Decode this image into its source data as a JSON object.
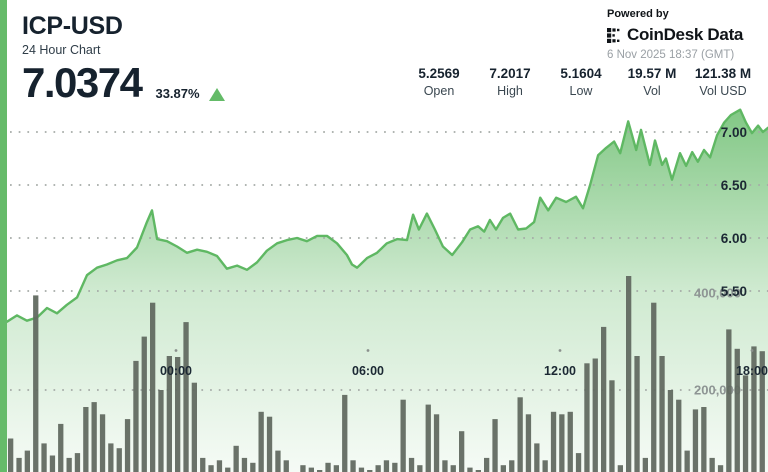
{
  "header": {
    "symbol": "ICP-USD",
    "subtitle": "24 Hour Chart",
    "price": "7.0374",
    "change_pct": "33.87%",
    "stats": [
      {
        "value": "5.2569",
        "label": "Open"
      },
      {
        "value": "7.2017",
        "label": "High"
      },
      {
        "value": "5.1604",
        "label": "Low"
      },
      {
        "value": "19.57 M",
        "label": "Vol"
      },
      {
        "value": "121.38 M",
        "label": "Vol USD"
      }
    ],
    "powered_by": "Powered by",
    "brand": "CoinDesk Data",
    "timestamp": "6 Nov 2025 18:37 (GMT)"
  },
  "colors": {
    "accent_strip": "#66bb6a",
    "line": "#5fb863",
    "up_triangle": "#64bb68",
    "bars": "#626a61",
    "grid": "#a5aba7",
    "text_dark": "#16222e",
    "text_gray": "#8e9594",
    "timestamp_gray": "#9aa0a5"
  },
  "chart_data": {
    "type": "area",
    "title": "ICP-USD 24 Hour Chart",
    "x_axis": {
      "unit": "hour_of_day",
      "ticks": [
        {
          "label": "00:00",
          "hour": 0
        },
        {
          "label": "06:00",
          "hour": 6
        },
        {
          "label": "12:00",
          "hour": 12
        },
        {
          "label": "18:00",
          "hour": 18
        }
      ]
    },
    "y_axis_price": {
      "range": [
        5.1,
        7.3
      ],
      "ticks": [
        {
          "label": "7.00",
          "value": 7.0
        },
        {
          "label": "6.50",
          "value": 6.5
        },
        {
          "label": "6.00",
          "value": 6.0
        },
        {
          "label": "5.50",
          "value": 5.5
        }
      ]
    },
    "y_axis_volume": {
      "ticks": [
        {
          "label": "400,000",
          "value": 400000
        },
        {
          "label": "200,000",
          "value": 200000
        }
      ]
    },
    "price_series": {
      "name": "ICP-USD price",
      "points": [
        [
          -5.28,
          5.21
        ],
        [
          -4.97,
          5.27
        ],
        [
          -4.66,
          5.22
        ],
        [
          -4.34,
          5.25
        ],
        [
          -4.03,
          5.34
        ],
        [
          -3.72,
          5.29
        ],
        [
          -3.41,
          5.37
        ],
        [
          -3.09,
          5.44
        ],
        [
          -2.78,
          5.65
        ],
        [
          -2.47,
          5.72
        ],
        [
          -2.16,
          5.75
        ],
        [
          -1.84,
          5.79
        ],
        [
          -1.53,
          5.81
        ],
        [
          -1.22,
          5.91
        ],
        [
          -0.91,
          6.15
        ],
        [
          -0.75,
          6.26
        ],
        [
          -0.59,
          5.99
        ],
        [
          -0.28,
          5.97
        ],
        [
          0.03,
          5.92
        ],
        [
          0.34,
          5.86
        ],
        [
          0.66,
          5.89
        ],
        [
          0.97,
          5.87
        ],
        [
          1.28,
          5.83
        ],
        [
          1.59,
          5.71
        ],
        [
          1.91,
          5.74
        ],
        [
          2.22,
          5.7
        ],
        [
          2.53,
          5.77
        ],
        [
          2.84,
          5.88
        ],
        [
          3.16,
          5.95
        ],
        [
          3.47,
          5.98
        ],
        [
          3.78,
          6.0
        ],
        [
          4.09,
          5.97
        ],
        [
          4.41,
          6.02
        ],
        [
          4.72,
          6.02
        ],
        [
          5.03,
          5.95
        ],
        [
          5.34,
          5.84
        ],
        [
          5.5,
          5.75
        ],
        [
          5.66,
          5.72
        ],
        [
          5.97,
          5.81
        ],
        [
          6.28,
          5.86
        ],
        [
          6.59,
          5.95
        ],
        [
          6.91,
          5.99
        ],
        [
          7.22,
          5.98
        ],
        [
          7.41,
          6.22
        ],
        [
          7.59,
          6.08
        ],
        [
          7.84,
          6.23
        ],
        [
          8.09,
          6.08
        ],
        [
          8.34,
          5.92
        ],
        [
          8.63,
          5.84
        ],
        [
          8.94,
          5.96
        ],
        [
          9.19,
          6.08
        ],
        [
          9.44,
          6.11
        ],
        [
          9.63,
          6.06
        ],
        [
          9.81,
          6.17
        ],
        [
          10.0,
          6.08
        ],
        [
          10.22,
          6.19
        ],
        [
          10.44,
          6.23
        ],
        [
          10.69,
          6.08
        ],
        [
          10.94,
          6.09
        ],
        [
          11.19,
          6.15
        ],
        [
          11.38,
          6.38
        ],
        [
          11.63,
          6.26
        ],
        [
          11.88,
          6.38
        ],
        [
          12.19,
          6.34
        ],
        [
          12.5,
          6.39
        ],
        [
          12.72,
          6.28
        ],
        [
          12.94,
          6.5
        ],
        [
          13.19,
          6.78
        ],
        [
          13.44,
          6.85
        ],
        [
          13.69,
          6.91
        ],
        [
          13.88,
          6.8
        ],
        [
          14.13,
          7.1
        ],
        [
          14.38,
          6.83
        ],
        [
          14.53,
          7.02
        ],
        [
          14.81,
          6.69
        ],
        [
          14.97,
          6.92
        ],
        [
          15.19,
          6.69
        ],
        [
          15.31,
          6.75
        ],
        [
          15.5,
          6.55
        ],
        [
          15.75,
          6.8
        ],
        [
          15.94,
          6.68
        ],
        [
          16.13,
          6.81
        ],
        [
          16.31,
          6.72
        ],
        [
          16.5,
          6.83
        ],
        [
          16.69,
          6.76
        ],
        [
          16.91,
          6.97
        ],
        [
          17.13,
          7.09
        ],
        [
          17.34,
          7.16
        ],
        [
          17.63,
          7.21
        ],
        [
          17.81,
          7.09
        ],
        [
          18.0,
          6.99
        ],
        [
          18.19,
          7.06
        ],
        [
          18.34,
          7.0
        ],
        [
          18.5,
          7.04
        ]
      ]
    },
    "volume_series": {
      "name": "Volume",
      "values": [
        100000,
        60000,
        75000,
        395000,
        90000,
        65000,
        130000,
        60000,
        70000,
        165000,
        175000,
        150000,
        90000,
        80000,
        140000,
        260000,
        310000,
        380000,
        200000,
        270000,
        268000,
        340000,
        215000,
        60000,
        45000,
        55000,
        40000,
        85000,
        60000,
        50000,
        155000,
        145000,
        75000,
        55000,
        30000,
        45000,
        40000,
        35000,
        50000,
        45000,
        190000,
        55000,
        40000,
        35000,
        45000,
        55000,
        50000,
        180000,
        60000,
        45000,
        170000,
        150000,
        55000,
        45000,
        115000,
        40000,
        35000,
        60000,
        140000,
        45000,
        55000,
        185000,
        150000,
        90000,
        55000,
        155000,
        150000,
        155000,
        70000,
        255000,
        265000,
        330000,
        220000,
        45000,
        435000,
        270000,
        60000,
        380000,
        270000,
        200000,
        180000,
        75000,
        160000,
        165000,
        60000,
        45000,
        325000,
        285000,
        230000,
        290000,
        280000
      ]
    }
  }
}
